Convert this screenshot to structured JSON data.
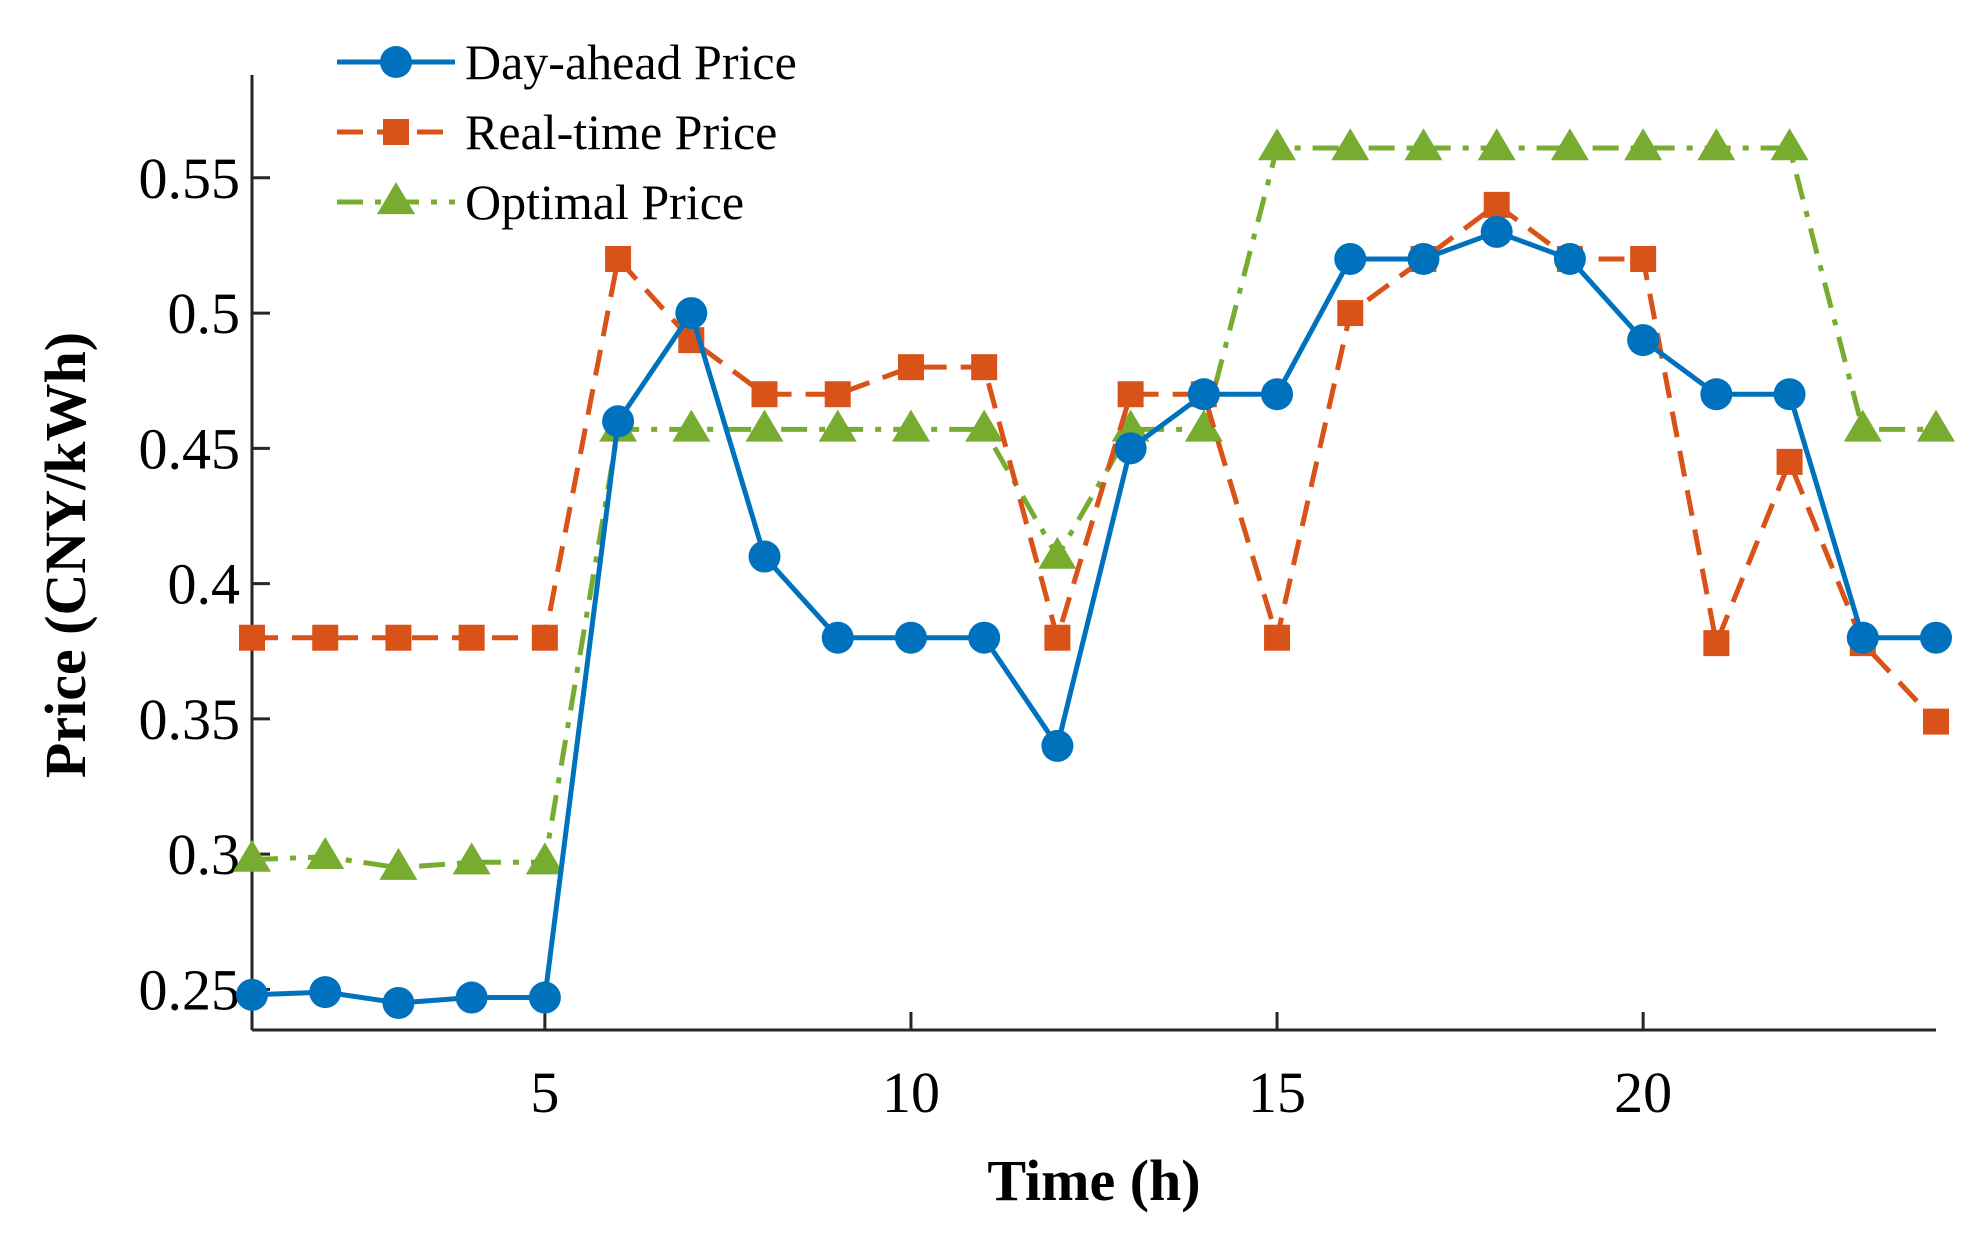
{
  "chart_data": {
    "type": "line",
    "xlabel": "Time (h)",
    "ylabel": "Price (CNY/kWh)",
    "xlim": [
      1,
      24
    ],
    "ylim": [
      0.235,
      0.588
    ],
    "xticks": [
      5,
      10,
      15,
      20
    ],
    "yticks": [
      0.25,
      0.3,
      0.35,
      0.4,
      0.45,
      0.5,
      0.55
    ],
    "ytick_labels": [
      "0.25",
      "0.3",
      "0.35",
      "0.4",
      "0.45",
      "0.5",
      "0.55"
    ],
    "grid": false,
    "legend_position": "top-left",
    "x": [
      1,
      2,
      3,
      4,
      5,
      6,
      7,
      8,
      9,
      10,
      11,
      12,
      13,
      14,
      15,
      16,
      17,
      18,
      19,
      20,
      21,
      22,
      23,
      24
    ],
    "series": [
      {
        "name": "Day-ahead Price",
        "color": "#0072BD",
        "line_style": "solid",
        "marker": "circle",
        "values": [
          0.248,
          0.249,
          0.245,
          0.247,
          0.247,
          0.46,
          0.5,
          0.41,
          0.38,
          0.38,
          0.38,
          0.34,
          0.45,
          0.47,
          0.47,
          0.52,
          0.52,
          0.53,
          0.52,
          0.49,
          0.47,
          0.47,
          0.38,
          0.38
        ]
      },
      {
        "name": "Real-time Price",
        "color": "#D95319",
        "line_style": "dashed",
        "marker": "square",
        "values": [
          0.38,
          0.38,
          0.38,
          0.38,
          0.38,
          0.52,
          0.49,
          0.47,
          0.47,
          0.48,
          0.48,
          0.38,
          0.47,
          0.47,
          0.38,
          0.5,
          0.52,
          0.54,
          0.52,
          0.52,
          0.378,
          0.445,
          0.378,
          0.349
        ]
      },
      {
        "name": "Optimal Price",
        "color": "#77AC30",
        "line_style": "dashdot",
        "marker": "triangle",
        "values": [
          0.298,
          0.299,
          0.295,
          0.297,
          0.297,
          0.457,
          0.457,
          0.457,
          0.457,
          0.457,
          0.457,
          0.41,
          0.457,
          0.457,
          0.561,
          0.561,
          0.561,
          0.561,
          0.561,
          0.561,
          0.561,
          0.561,
          0.457,
          0.457
        ]
      }
    ]
  }
}
